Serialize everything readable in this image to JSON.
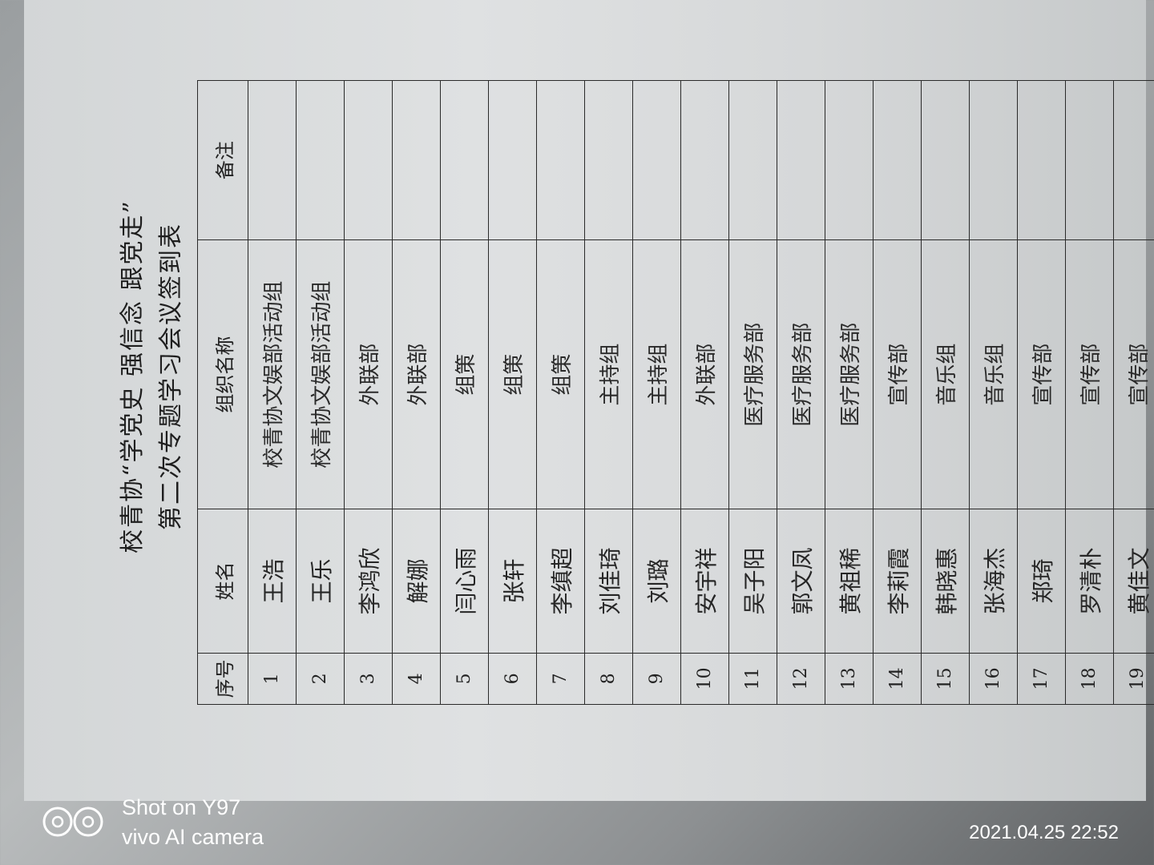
{
  "document": {
    "title_line1": "校青协“学党史 强信念 跟党走”",
    "title_line2": "第二次专题学习会议签到表",
    "headers": [
      "序号",
      "姓名",
      "组织名称",
      "备注"
    ],
    "rows": [
      {
        "no": "1",
        "name": "王浩",
        "org": "校青协文娱部活动组",
        "note": ""
      },
      {
        "no": "2",
        "name": "王乐",
        "org": "校青协文娱部活动组",
        "note": ""
      },
      {
        "no": "3",
        "name": "李鸿欣",
        "org": "外联部",
        "note": ""
      },
      {
        "no": "4",
        "name": "解娜",
        "org": "外联部",
        "note": ""
      },
      {
        "no": "5",
        "name": "闫心雨",
        "org": "组策",
        "note": ""
      },
      {
        "no": "6",
        "name": "张轩",
        "org": "组策",
        "note": ""
      },
      {
        "no": "7",
        "name": "李缜超",
        "org": "组策",
        "note": ""
      },
      {
        "no": "8",
        "name": "刘佳琦",
        "org": "主持组",
        "note": ""
      },
      {
        "no": "9",
        "name": "刘璐",
        "org": "主持组",
        "note": ""
      },
      {
        "no": "10",
        "name": "安宇祥",
        "org": "外联部",
        "note": ""
      },
      {
        "no": "11",
        "name": "吴子阳",
        "org": "医疗服务部",
        "note": ""
      },
      {
        "no": "12",
        "name": "郭文凤",
        "org": "医疗服务部",
        "note": ""
      },
      {
        "no": "13",
        "name": "黄祖稀",
        "org": "医疗服务部",
        "note": ""
      },
      {
        "no": "14",
        "name": "李莉霞",
        "org": "宣传部",
        "note": ""
      },
      {
        "no": "15",
        "name": "韩晓惠",
        "org": "音乐组",
        "note": ""
      },
      {
        "no": "16",
        "name": "张海杰",
        "org": "音乐组",
        "note": ""
      },
      {
        "no": "17",
        "name": "郑琦",
        "org": "宣传部",
        "note": ""
      },
      {
        "no": "18",
        "name": "罗清朴",
        "org": "宣传部",
        "note": ""
      },
      {
        "no": "19",
        "name": "黄佳文",
        "org": "宣传部",
        "note": ""
      }
    ]
  },
  "camera_watermark": {
    "line1": "Shot on Y97",
    "line2": "vivo AI camera",
    "icon": "aperture-icon",
    "timestamp": "2021.04.25 22:52"
  }
}
